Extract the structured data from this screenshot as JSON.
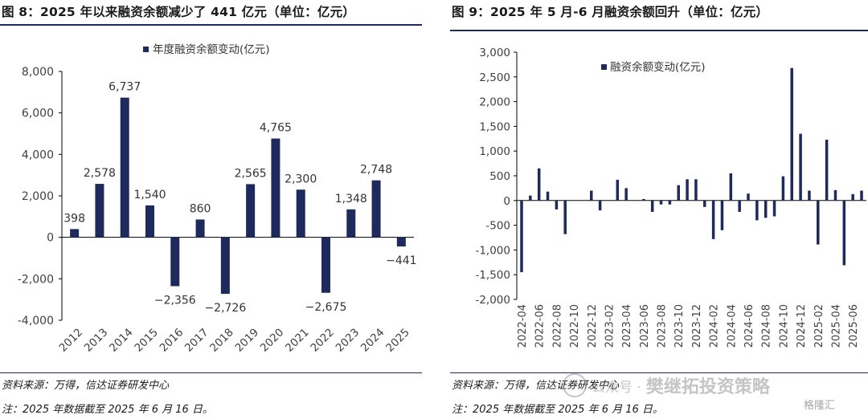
{
  "left_panel": {
    "title": "图 8：2025 年以来融资余额减少了 441 亿元（单位：亿元）",
    "source": "资料来源：万得，信达证券研发中心",
    "note": "注：2025 年数据截至 2025 年 6 月 16 日。"
  },
  "right_panel": {
    "title": "图 9：2025 年 5 月-6 月融资余额回升（单位：亿元）",
    "source": "资料来源：万得，信达证券研发中心",
    "note": "注：2025 年数据截至 2025 年 6 月 16 日。"
  },
  "watermark": {
    "text_small": "公众号 ·",
    "text_large": "樊继拓投资策略",
    "logo_text": "格隆汇"
  },
  "colors": {
    "bar": "#1f2a5c",
    "rule": "#1f2a5c",
    "axis": "#000000",
    "text": "#404040"
  },
  "chart_data": [
    {
      "type": "bar",
      "legend": "年度融资余额变动(亿元)",
      "legend_position": "top-center",
      "categories": [
        "2012",
        "2013",
        "2014",
        "2015",
        "2016",
        "2017",
        "2018",
        "2019",
        "2020",
        "2021",
        "2022",
        "2023",
        "2024",
        "2025"
      ],
      "values": [
        398,
        2578,
        6737,
        1540,
        -2356,
        860,
        -2726,
        2565,
        4765,
        2300,
        -2675,
        1348,
        2748,
        -441
      ],
      "data_labels": [
        "398",
        "2,578",
        "6,737",
        "1,540",
        "−2,356",
        "860",
        "−2,726",
        "2,565",
        "4,765",
        "2,300",
        "−2,675",
        "1,348",
        "2,748",
        "−441"
      ],
      "ylim": [
        -4000,
        8000
      ],
      "yticks": [
        -4000,
        -2000,
        0,
        2000,
        4000,
        6000,
        8000
      ],
      "ytick_labels": [
        "-4,000",
        "-2,000",
        "0",
        "2,000",
        "4,000",
        "6,000",
        "8,000"
      ],
      "grid": false
    },
    {
      "type": "bar",
      "legend": "融资余额变动(亿元)",
      "legend_position": "top-center",
      "x": [
        "2022-04",
        "2022-05",
        "2022-06",
        "2022-07",
        "2022-08",
        "2022-09",
        "2022-10",
        "2022-11",
        "2022-12",
        "2023-01",
        "2023-02",
        "2023-03",
        "2023-04",
        "2023-05",
        "2023-06",
        "2023-07",
        "2023-08",
        "2023-09",
        "2023-10",
        "2023-11",
        "2023-12",
        "2024-01",
        "2024-02",
        "2024-03",
        "2024-04",
        "2024-05",
        "2024-06",
        "2024-07",
        "2024-08",
        "2024-09",
        "2024-10",
        "2024-11",
        "2024-12",
        "2025-01",
        "2025-02",
        "2025-03",
        "2025-04",
        "2025-05",
        "2025-06"
      ],
      "values": [
        -1450,
        100,
        650,
        180,
        -180,
        -680,
        0,
        0,
        200,
        -200,
        0,
        420,
        250,
        0,
        30,
        -230,
        -80,
        -80,
        310,
        430,
        430,
        -130,
        -780,
        -600,
        550,
        -230,
        140,
        -400,
        -350,
        -320,
        490,
        2680,
        1350,
        200,
        -890,
        1230,
        210,
        -1310,
        130
      ],
      "trailing_value": 200,
      "xtick_labels": [
        "2022-04",
        "2022-06",
        "2022-08",
        "2022-10",
        "2022-12",
        "2023-02",
        "2023-04",
        "2023-06",
        "2023-08",
        "2023-10",
        "2023-12",
        "2024-02",
        "2024-04",
        "2024-06",
        "2024-08",
        "2024-10",
        "2024-12",
        "2025-02",
        "2025-04",
        "2025-06"
      ],
      "ylim": [
        -2000,
        3000
      ],
      "yticks": [
        -2000,
        -1500,
        -1000,
        -500,
        0,
        500,
        1000,
        1500,
        2000,
        2500,
        3000
      ],
      "ytick_labels": [
        "-2,000",
        "-1,500",
        "-1,000",
        "-500",
        "0",
        "500",
        "1,000",
        "1,500",
        "2,000",
        "2,500",
        "3,000"
      ],
      "grid": false
    }
  ]
}
